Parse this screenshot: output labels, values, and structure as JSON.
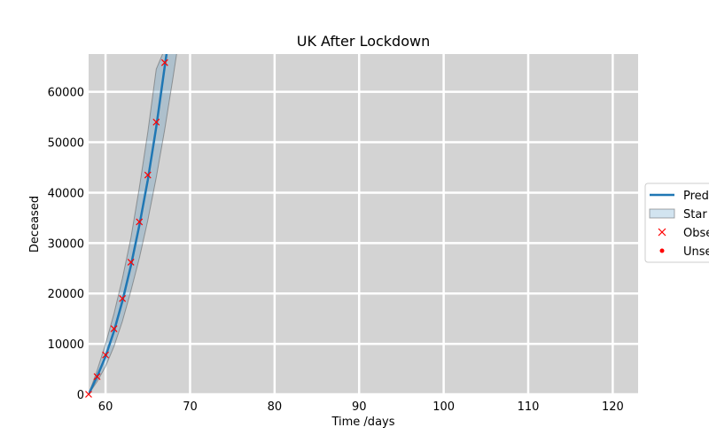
{
  "chart_data": {
    "type": "line",
    "title": "UK After Lockdown",
    "xlabel": "Time /days",
    "ylabel": "Deceased",
    "xlim": [
      58,
      123
    ],
    "ylim": [
      0,
      67500
    ],
    "xticks": [
      60,
      70,
      80,
      90,
      100,
      110,
      120
    ],
    "yticks": [
      0,
      10000,
      20000,
      30000,
      40000,
      50000,
      60000
    ],
    "grid": true,
    "background": "#d3d3d3",
    "legend_position": "right (clipped)",
    "series": [
      {
        "name": "Pred",
        "kind": "line",
        "color": "#1f77b4",
        "x": [
          58,
          59,
          60,
          61,
          62,
          63,
          64,
          65,
          66,
          67,
          67.3
        ],
        "y": [
          0,
          3500,
          7500,
          12500,
          18500,
          25500,
          33500,
          42500,
          53000,
          65000,
          68500
        ]
      },
      {
        "name": "Star",
        "kind": "band",
        "color": "#1f77b4",
        "x": [
          58,
          59,
          60,
          61,
          62,
          63,
          64,
          65,
          66,
          67,
          68,
          68.5
        ],
        "lower": [
          0,
          2500,
          5500,
          9500,
          14500,
          20500,
          27000,
          34500,
          43000,
          52500,
          63000,
          68500
        ],
        "upper": [
          0,
          4700,
          10000,
          16000,
          23000,
          31000,
          41000,
          52000,
          64500,
          68500,
          68500,
          68500
        ]
      },
      {
        "name": "Obse",
        "kind": "marker-x",
        "color": "#ff0000",
        "x": [
          58,
          59,
          60,
          61,
          62,
          63,
          64,
          65,
          66,
          67
        ],
        "y": [
          0,
          3500,
          7800,
          13000,
          19000,
          26200,
          34200,
          43500,
          54000,
          65800
        ]
      },
      {
        "name": "Unse",
        "kind": "marker-dot",
        "color": "#ff0000",
        "x": [],
        "y": []
      }
    ]
  }
}
